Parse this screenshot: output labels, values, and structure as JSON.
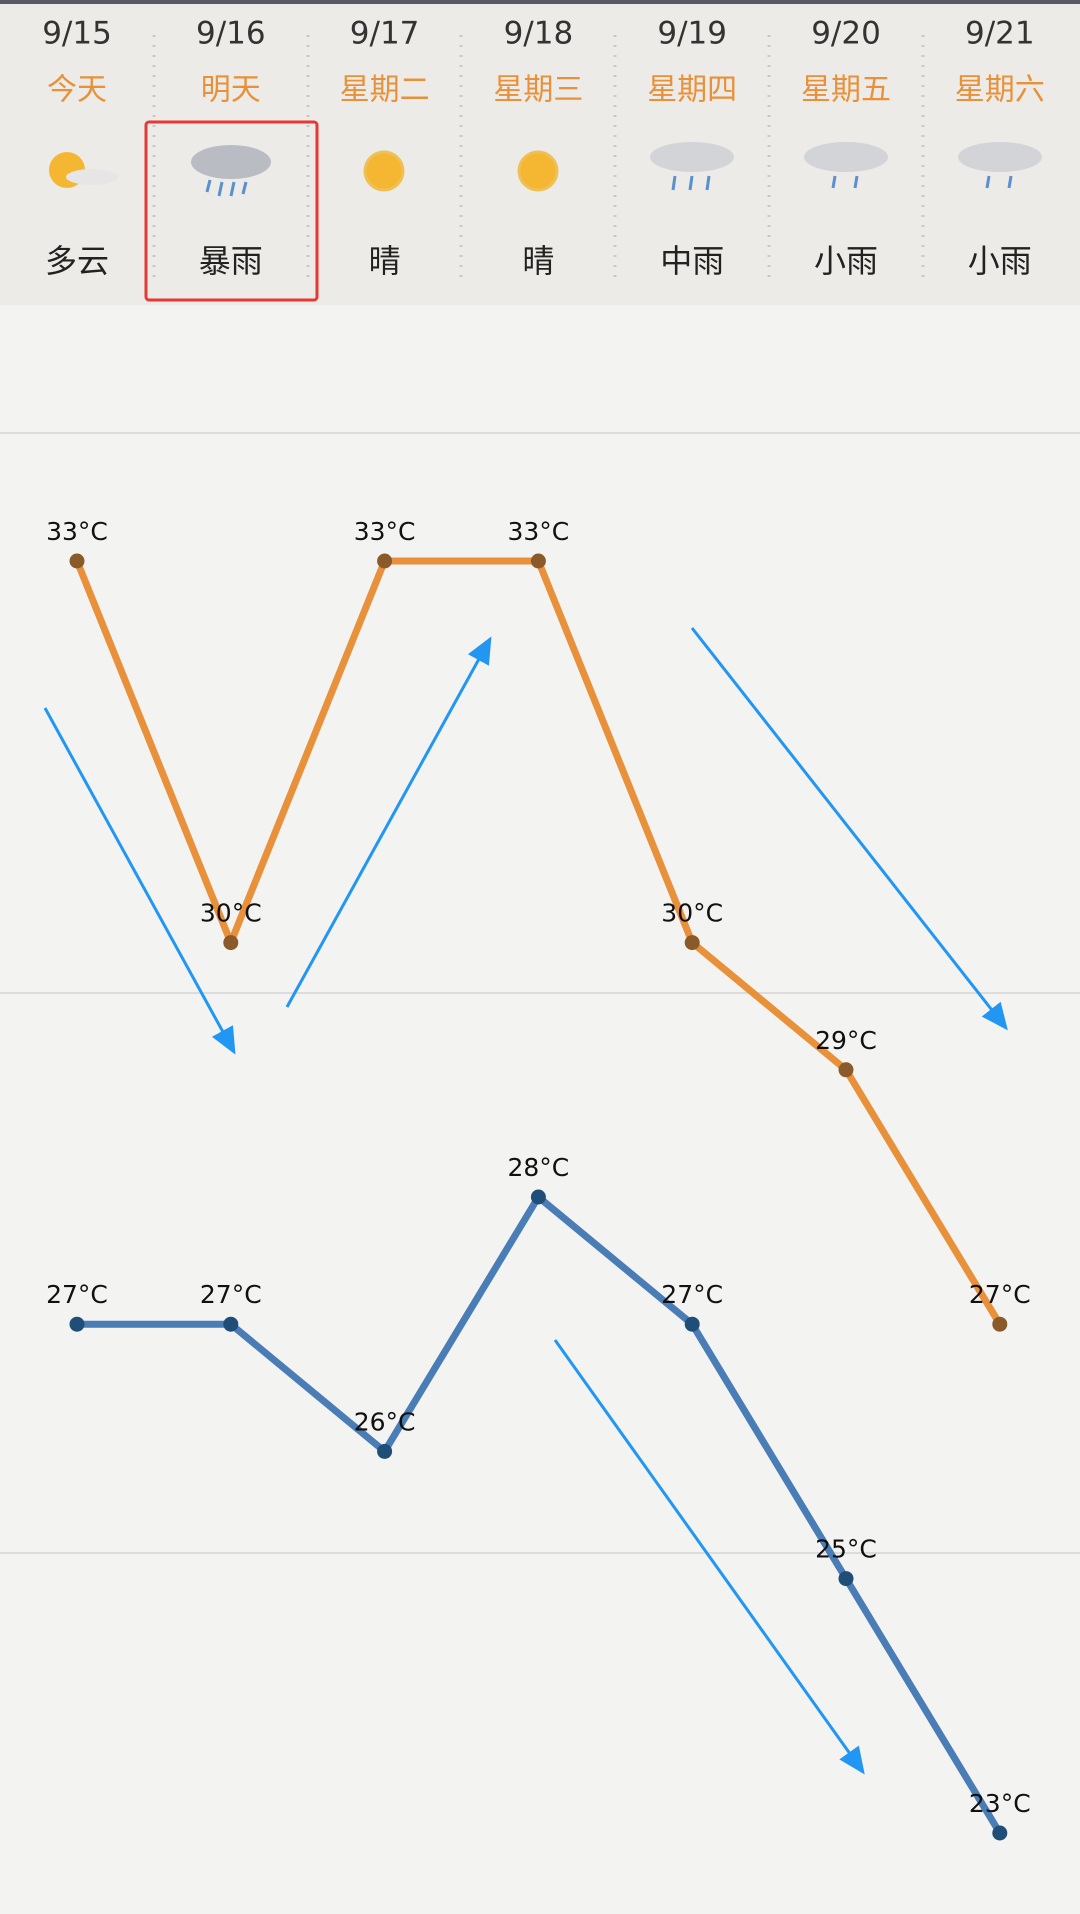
{
  "chart_data": {
    "type": "line",
    "categories": [
      "9/15",
      "9/16",
      "9/17",
      "9/18",
      "9/19",
      "9/20",
      "9/21"
    ],
    "day_labels": [
      "今天",
      "明天",
      "星期二",
      "星期三",
      "星期四",
      "星期五",
      "星期六"
    ],
    "conditions": [
      "多云",
      "暴雨",
      "晴",
      "晴",
      "中雨",
      "小雨",
      "小雨"
    ],
    "series": [
      {
        "color": "#e8913a",
        "point_color": "#8b5a2b",
        "values": [
          33,
          30,
          33,
          33,
          30,
          29,
          27
        ],
        "value_labels": [
          "33°C",
          "30°C",
          "33°C",
          "33°C",
          "30°C",
          "29°C",
          "27°C"
        ]
      },
      {
        "color": "#4a7db5",
        "point_color": "#1f4e79",
        "values": [
          27,
          27,
          26,
          28,
          27,
          25,
          23
        ],
        "value_labels": [
          "27°C",
          "27°C",
          "26°C",
          "28°C",
          "27°C",
          "25°C",
          "23°C"
        ]
      }
    ]
  }
}
